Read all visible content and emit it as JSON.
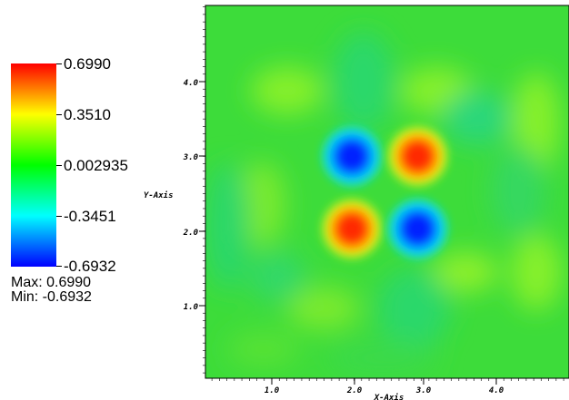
{
  "chart_data": {
    "type": "heatmap",
    "title": "",
    "xlabel": "X-Axis",
    "ylabel": "Y-Axis",
    "xlim": [
      0,
      5
    ],
    "ylim": [
      0,
      5
    ],
    "x_ticks": [
      "1.0",
      "2.0",
      "3.0",
      "4.0"
    ],
    "y_ticks": [
      "4.0",
      "3.0",
      "2.0",
      "1.0"
    ],
    "x_tick_values": [
      1,
      2,
      3,
      4
    ],
    "y_tick_values": [
      4,
      3,
      2,
      1
    ],
    "color_range": [
      -0.6932,
      0.699
    ],
    "peaks": [
      {
        "x": 2.07,
        "y": 3.0,
        "value": -0.6932
      },
      {
        "x": 2.95,
        "y": 3.0,
        "value": 0.699
      },
      {
        "x": 2.07,
        "y": 2.03,
        "value": 0.699
      },
      {
        "x": 2.95,
        "y": 2.03,
        "value": -0.6932
      }
    ]
  },
  "colorbar": {
    "labels": [
      "0.6990",
      "0.3510",
      "0.002935",
      "-0.3451",
      "-0.6932"
    ],
    "values": [
      0.699,
      0.351,
      0.002935,
      -0.3451,
      -0.6932
    ],
    "colors": [
      "#ff0000",
      "#ffff00",
      "#00ff00",
      "#00ffff",
      "#0000ff"
    ],
    "max_label": "Max: 0.6990",
    "min_label": "Min: -0.6932"
  },
  "colors": {
    "field_base": "#3ddc3a",
    "positive": "#ff2a00",
    "negative": "#0020ff"
  }
}
